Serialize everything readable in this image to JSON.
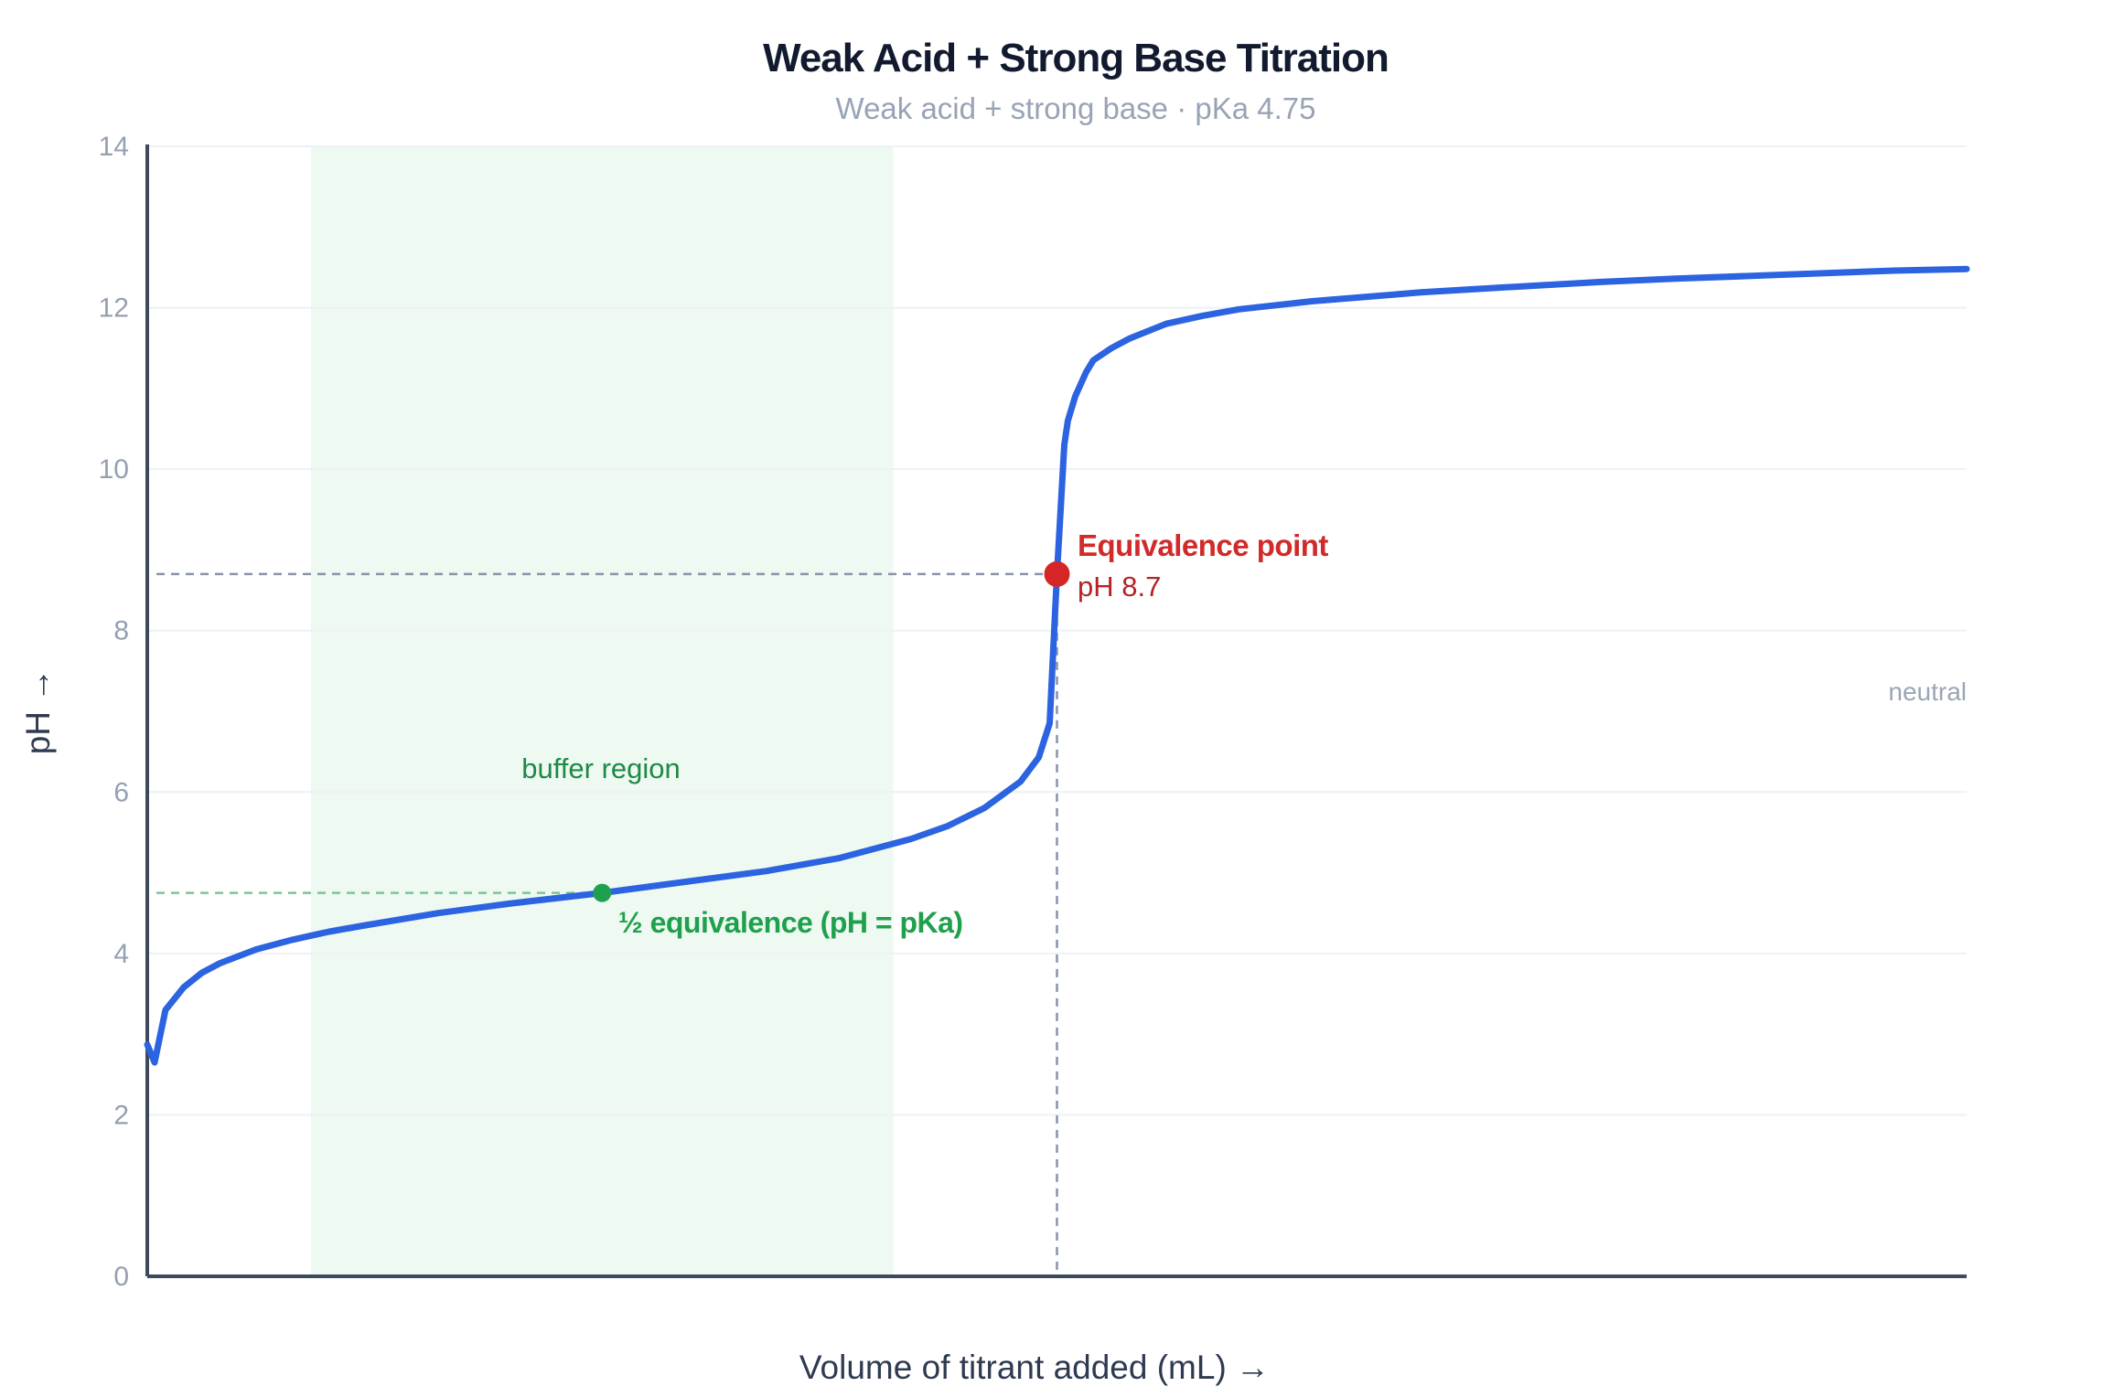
{
  "chart_data": {
    "type": "line",
    "title": "Weak Acid + Strong Base Titration",
    "subtitle": "Weak acid + strong base · pKa 4.75",
    "xlabel": "Volume of titrant added (mL) →",
    "ylabel": "pH →",
    "xlim": [
      0,
      50
    ],
    "ylim": [
      0,
      14
    ],
    "y_ticks": [
      0,
      2,
      4,
      6,
      8,
      10,
      12,
      14
    ],
    "grid": true,
    "pka": 4.75,
    "equivalence_volume": 25,
    "series": [
      {
        "color": "#2b63e0",
        "x": [
          0,
          0.2,
          0.5,
          1,
          1.5,
          2,
          3,
          4,
          5,
          6,
          8,
          10,
          12.5,
          15,
          17,
          19,
          20,
          21,
          22,
          23,
          24,
          24.5,
          24.8,
          25,
          25.2,
          25.3,
          25.5,
          25.8,
          26,
          26.5,
          27,
          28,
          29,
          30,
          32,
          35,
          38,
          40,
          42,
          45,
          48,
          50
        ],
        "y": [
          2.87,
          2.65,
          3.3,
          3.58,
          3.76,
          3.88,
          4.05,
          4.17,
          4.27,
          4.35,
          4.5,
          4.62,
          4.75,
          4.9,
          5.02,
          5.18,
          5.3,
          5.42,
          5.58,
          5.8,
          6.13,
          6.43,
          6.85,
          8.7,
          10.3,
          10.6,
          10.9,
          11.2,
          11.35,
          11.5,
          11.62,
          11.8,
          11.9,
          11.98,
          12.08,
          12.19,
          12.27,
          12.32,
          12.36,
          12.41,
          12.46,
          12.48
        ]
      }
    ],
    "buffer_region": {
      "label": "buffer region",
      "x_range": [
        4.5,
        20.5
      ],
      "color": "#eef9f2"
    },
    "half_equivalence": {
      "label": "½ equivalence (pH = pKa)",
      "x": 12.5,
      "y": 4.75,
      "color": "#1fa04c"
    },
    "equivalence_point": {
      "label": "Equivalence point",
      "value_label": "pH 8.7",
      "x": 25,
      "y": 8.7,
      "color": "#d42626"
    },
    "neutral_label": "neutral",
    "neutral_ph": 7
  }
}
